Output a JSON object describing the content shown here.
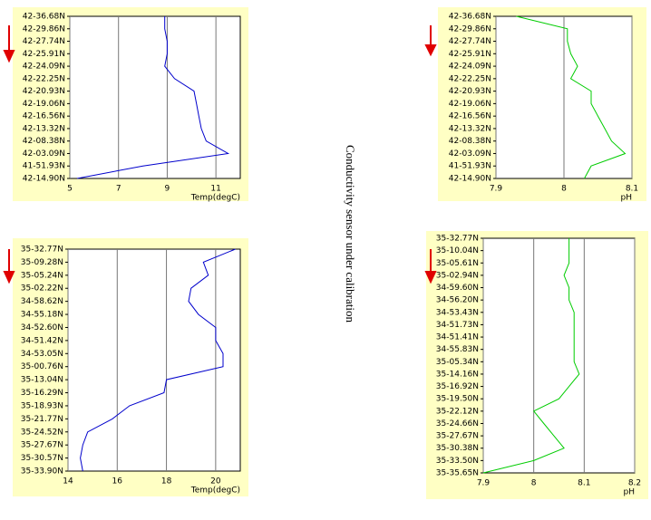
{
  "annotation": "Conductivity sensor under calibration",
  "chart_data": [
    {
      "type": "line",
      "xlabel": "Temp(degC)",
      "color": "#0000cc",
      "xlim": [
        5,
        12
      ],
      "xticks": [
        5,
        7,
        9,
        11
      ],
      "grid": true,
      "categories": [
        "42-36.68N",
        "42-29.86N",
        "42-27.74N",
        "42-25.91N",
        "42-24.09N",
        "42-22.25N",
        "42-20.93N",
        "42-19.06N",
        "42-16.56N",
        "42-13.32N",
        "42-08.38N",
        "42-03.09N",
        "41-51.93N",
        "42-14.90N"
      ],
      "values": [
        8.9,
        8.9,
        9.0,
        9.0,
        8.9,
        9.3,
        10.1,
        10.2,
        10.3,
        10.4,
        10.6,
        11.5,
        8.0,
        5.3
      ]
    },
    {
      "type": "line",
      "xlabel": "pH",
      "color": "#00cc00",
      "xlim": [
        7.9,
        8.1
      ],
      "xticks": [
        7.9,
        8,
        8.1
      ],
      "grid": true,
      "categories": [
        "42-36.68N",
        "42-29.86N",
        "42-27.74N",
        "42-25.91N",
        "42-24.09N",
        "42-22.25N",
        "42-20.93N",
        "42-19.06N",
        "42-16.56N",
        "42-13.32N",
        "42-08.38N",
        "42-03.09N",
        "41-51.93N",
        "42-14.90N"
      ],
      "values": [
        7.93,
        8.005,
        8.005,
        8.01,
        8.02,
        8.01,
        8.04,
        8.04,
        8.05,
        8.06,
        8.07,
        8.09,
        8.04,
        8.03
      ]
    },
    {
      "type": "line",
      "xlabel": "Temp(degC)",
      "color": "#0000cc",
      "xlim": [
        14,
        21
      ],
      "xticks": [
        14,
        16,
        18,
        20
      ],
      "grid": true,
      "categories": [
        "35-32.77N",
        "35-09.28N",
        "35-05.24N",
        "35-02.22N",
        "34-58.62N",
        "34-55.18N",
        "34-52.60N",
        "34-51.42N",
        "34-53.05N",
        "35-00.76N",
        "35-13.04N",
        "35-16.29N",
        "35-18.93N",
        "35-21.77N",
        "35-24.52N",
        "35-27.67N",
        "35-30.57N",
        "35-33.90N"
      ],
      "values": [
        20.8,
        19.5,
        19.7,
        19.0,
        18.9,
        19.3,
        20.0,
        20.0,
        20.3,
        20.3,
        18.0,
        17.9,
        16.5,
        15.8,
        14.8,
        14.6,
        14.5,
        14.6
      ]
    },
    {
      "type": "line",
      "xlabel": "pH",
      "color": "#00cc00",
      "xlim": [
        7.9,
        8.2
      ],
      "xticks": [
        7.9,
        8,
        8.1,
        8.2
      ],
      "grid": true,
      "categories": [
        "35-32.77N",
        "35-10.04N",
        "35-05.61N",
        "35-02.94N",
        "34-59.60N",
        "34-56.20N",
        "34-53.43N",
        "34-51.73N",
        "34-51.41N",
        "34-55.83N",
        "35-05.34N",
        "35-14.16N",
        "35-16.92N",
        "35-19.50N",
        "35-22.12N",
        "35-24.66N",
        "35-27.67N",
        "35-30.38N",
        "35-33.50N",
        "35-35.65N"
      ],
      "values": [
        8.07,
        8.07,
        8.07,
        8.06,
        8.07,
        8.07,
        8.08,
        8.08,
        8.08,
        8.08,
        8.08,
        8.09,
        8.07,
        8.05,
        8.0,
        8.02,
        8.04,
        8.06,
        8.0,
        7.9
      ]
    }
  ]
}
